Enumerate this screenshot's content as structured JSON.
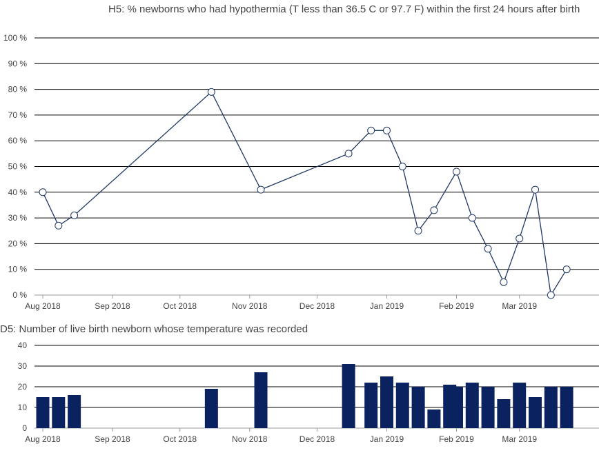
{
  "chart_data": [
    {
      "type": "line",
      "title": "H5: % newborns who had hypothermia (T less than 36.5 C or 97.7 F) within the first 24 hours after birth",
      "xlabel": "",
      "ylabel": "",
      "ylim": [
        0,
        100
      ],
      "y_ticks": [
        "0 %",
        "10 %",
        "20 %",
        "30 %",
        "40 %",
        "50 %",
        "60 %",
        "70 %",
        "80 %",
        "90 %",
        "100 %"
      ],
      "x_ticks": [
        "Aug 2018",
        "Sep 2018",
        "Oct 2018",
        "Nov 2018",
        "Dec 2018",
        "Jan 2019",
        "Feb 2019",
        "Mar 2019"
      ],
      "grid": true,
      "legend": "none",
      "line_color": "#1f3864",
      "series": [
        {
          "x": [
            "2018-08-01",
            "2018-08-08",
            "2018-08-15",
            "2018-10-15",
            "2018-11-06",
            "2018-12-15",
            "2018-12-25",
            "2019-01-01",
            "2019-01-08",
            "2019-01-15",
            "2019-01-22",
            "2019-02-01",
            "2019-02-08",
            "2019-02-15",
            "2019-02-22",
            "2019-03-01",
            "2019-03-08",
            "2019-03-15",
            "2019-03-22"
          ],
          "values": [
            40,
            27,
            31,
            79,
            41,
            55,
            64,
            64,
            50,
            25,
            33,
            48,
            30,
            18,
            5,
            22,
            41,
            0,
            10
          ]
        }
      ]
    },
    {
      "type": "bar",
      "title": "D5: Number of live birth newborn whose temperature was recorded",
      "xlabel": "",
      "ylabel": "",
      "ylim": [
        0,
        40
      ],
      "y_ticks": [
        "0",
        "10",
        "20",
        "30",
        "40"
      ],
      "x_ticks": [
        "Aug 2018",
        "Sep 2018",
        "Oct 2018",
        "Nov 2018",
        "Dec 2018",
        "Jan 2019",
        "Feb 2019",
        "Mar 2019"
      ],
      "grid": true,
      "legend": "none",
      "bar_color": "#0b2260",
      "series": [
        {
          "x": [
            "2018-08-01",
            "2018-08-08",
            "2018-08-15",
            "2018-10-15",
            "2018-11-06",
            "2018-12-15",
            "2018-12-25",
            "2019-01-01",
            "2019-01-08",
            "2019-01-15",
            "2019-01-22",
            "2019-01-29",
            "2019-02-01",
            "2019-02-08",
            "2019-02-15",
            "2019-02-22",
            "2019-03-01",
            "2019-03-08",
            "2019-03-15",
            "2019-03-22"
          ],
          "values": [
            15,
            15,
            16,
            19,
            27,
            31,
            22,
            25,
            22,
            20,
            9,
            21,
            20,
            22,
            20,
            14,
            22,
            15,
            20,
            20
          ]
        }
      ]
    }
  ]
}
